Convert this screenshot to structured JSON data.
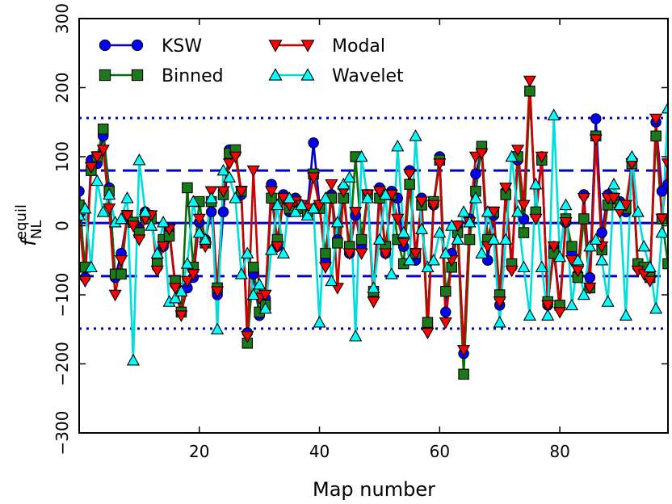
{
  "chart_data": {
    "type": "line",
    "xlabel": "Map number",
    "ylabel": "f_NL^equil",
    "ylabel_main": "f",
    "ylabel_sup": "equil",
    "ylabel_sub": "NL",
    "xlim": [
      0,
      98
    ],
    "ylim": [
      -300,
      300
    ],
    "xticks": [
      20,
      40,
      60,
      80
    ],
    "yticks": [
      -300,
      -200,
      -100,
      0,
      100,
      200,
      300
    ],
    "ytick_labels": [
      "−300",
      "−200",
      "−100",
      "0",
      "100",
      "200",
      "300"
    ],
    "legend_position": "top-left",
    "reference_lines": [
      {
        "name": "mean",
        "y": 4,
        "style": "solid",
        "color": "#0000cc"
      },
      {
        "name": "plus-1-sigma",
        "y": 80,
        "style": "dashed",
        "color": "#0000cc"
      },
      {
        "name": "minus-1-sigma",
        "y": -73,
        "style": "dashed",
        "color": "#0000cc"
      },
      {
        "name": "plus-2-sigma",
        "y": 156,
        "style": "dotted",
        "color": "#0000cc"
      },
      {
        "name": "minus-2-sigma",
        "y": -149,
        "style": "dotted",
        "color": "#0000cc"
      }
    ],
    "x": [
      0,
      1,
      2,
      3,
      4,
      5,
      6,
      7,
      8,
      9,
      10,
      11,
      12,
      13,
      14,
      15,
      16,
      17,
      18,
      19,
      20,
      21,
      22,
      23,
      24,
      25,
      26,
      27,
      28,
      29,
      30,
      31,
      32,
      33,
      34,
      35,
      36,
      37,
      38,
      39,
      40,
      41,
      42,
      43,
      44,
      45,
      46,
      47,
      48,
      49,
      50,
      51,
      52,
      53,
      54,
      55,
      56,
      57,
      58,
      59,
      60,
      61,
      62,
      63,
      64,
      65,
      66,
      67,
      68,
      69,
      70,
      71,
      72,
      73,
      74,
      75,
      76,
      77,
      78,
      79,
      80,
      81,
      82,
      83,
      84,
      85,
      86,
      87,
      88,
      89,
      90,
      91,
      92,
      93,
      94,
      95,
      96,
      97,
      98
    ],
    "series": [
      {
        "name": "KSW",
        "color": "#0000ff",
        "line_color": "#0000cc",
        "marker": "circle",
        "values": [
          50,
          -75,
          95,
          90,
          130,
          55,
          -75,
          -40,
          10,
          5,
          -5,
          20,
          15,
          -60,
          -30,
          -5,
          -85,
          -125,
          -90,
          -75,
          5,
          -20,
          20,
          -100,
          20,
          110,
          105,
          45,
          -155,
          -70,
          -130,
          -105,
          60,
          -30,
          45,
          20,
          40,
          30,
          25,
          120,
          30,
          -50,
          45,
          -20,
          55,
          -40,
          15,
          -30,
          45,
          -100,
          55,
          -40,
          50,
          40,
          -30,
          80,
          -50,
          40,
          -145,
          30,
          100,
          -125,
          -40,
          0,
          -185,
          10,
          75,
          110,
          -50,
          15,
          -115,
          50,
          -60,
          95,
          10,
          195,
          20,
          100,
          -115,
          -30,
          -115,
          5,
          -40,
          -70,
          45,
          -75,
          155,
          -10,
          45,
          40,
          35,
          20,
          95,
          -60,
          -60,
          -75,
          150,
          50,
          60
        ]
      },
      {
        "name": "Binned",
        "color": "#1a7a1a",
        "line_color": "#0b6b0b",
        "marker": "square",
        "values": [
          30,
          -60,
          80,
          100,
          140,
          50,
          -70,
          -70,
          15,
          5,
          -10,
          15,
          10,
          -55,
          -20,
          -15,
          -80,
          -125,
          55,
          -60,
          35,
          -25,
          35,
          -90,
          45,
          105,
          110,
          50,
          -170,
          -60,
          -125,
          -115,
          40,
          -20,
          40,
          25,
          35,
          25,
          20,
          75,
          25,
          -40,
          40,
          -25,
          40,
          -30,
          100,
          -20,
          45,
          -95,
          40,
          -30,
          45,
          -20,
          -55,
          60,
          -40,
          30,
          -140,
          35,
          95,
          -95,
          -60,
          -10,
          -215,
          -20,
          50,
          115,
          -20,
          20,
          -100,
          45,
          -55,
          100,
          -10,
          195,
          20,
          95,
          -110,
          -40,
          -115,
          10,
          -30,
          -75,
          10,
          -90,
          130,
          -35,
          30,
          40,
          30,
          25,
          90,
          -55,
          -60,
          -75,
          130,
          10,
          -55
        ]
      },
      {
        "name": "Modal",
        "color": "#ff0000",
        "line_color": "#cc0000",
        "marker": "triangle-down",
        "values": [
          10,
          -80,
          85,
          100,
          110,
          25,
          -100,
          -50,
          15,
          0,
          -20,
          10,
          15,
          -65,
          -30,
          -5,
          -90,
          -130,
          -80,
          -70,
          10,
          -30,
          50,
          -95,
          50,
          90,
          100,
          50,
          -160,
          80,
          -105,
          -100,
          50,
          -30,
          40,
          30,
          35,
          30,
          25,
          70,
          30,
          -60,
          60,
          -90,
          50,
          -40,
          20,
          -40,
          45,
          -110,
          50,
          -40,
          45,
          10,
          -25,
          75,
          -40,
          35,
          -155,
          30,
          90,
          -140,
          -50,
          0,
          -180,
          5,
          100,
          105,
          -30,
          20,
          -110,
          55,
          -65,
          110,
          30,
          210,
          10,
          100,
          -115,
          -30,
          -125,
          5,
          -50,
          -65,
          40,
          -90,
          125,
          -30,
          40,
          40,
          20,
          30,
          90,
          -65,
          -70,
          -80,
          155,
          10,
          90
        ]
      },
      {
        "name": "Wavelet",
        "color": "#00ffff",
        "line_color": "#00dddd",
        "marker": "triangle-up",
        "values": [
          15,
          25,
          -60,
          65,
          20,
          45,
          5,
          10,
          40,
          -195,
          95,
          20,
          0,
          -40,
          5,
          -110,
          -105,
          -95,
          -55,
          35,
          -10,
          -20,
          40,
          -150,
          80,
          70,
          40,
          -70,
          -40,
          -100,
          -85,
          -120,
          -35,
          30,
          -40,
          40,
          20,
          30,
          15,
          25,
          -140,
          40,
          -80,
          5,
          60,
          70,
          -160,
          100,
          40,
          -90,
          -20,
          45,
          -70,
          115,
          -10,
          -50,
          130,
          -5,
          -60,
          -50,
          -10,
          -40,
          0,
          -20,
          20,
          5,
          40,
          -40,
          20,
          -20,
          -140,
          -20,
          100,
          20,
          -60,
          -130,
          60,
          -60,
          -130,
          160,
          -45,
          30,
          -115,
          -50,
          -100,
          -30,
          -20,
          -50,
          -110,
          60,
          30,
          -130,
          100,
          20,
          -30,
          -60,
          -120,
          -10,
          170
        ]
      }
    ]
  }
}
